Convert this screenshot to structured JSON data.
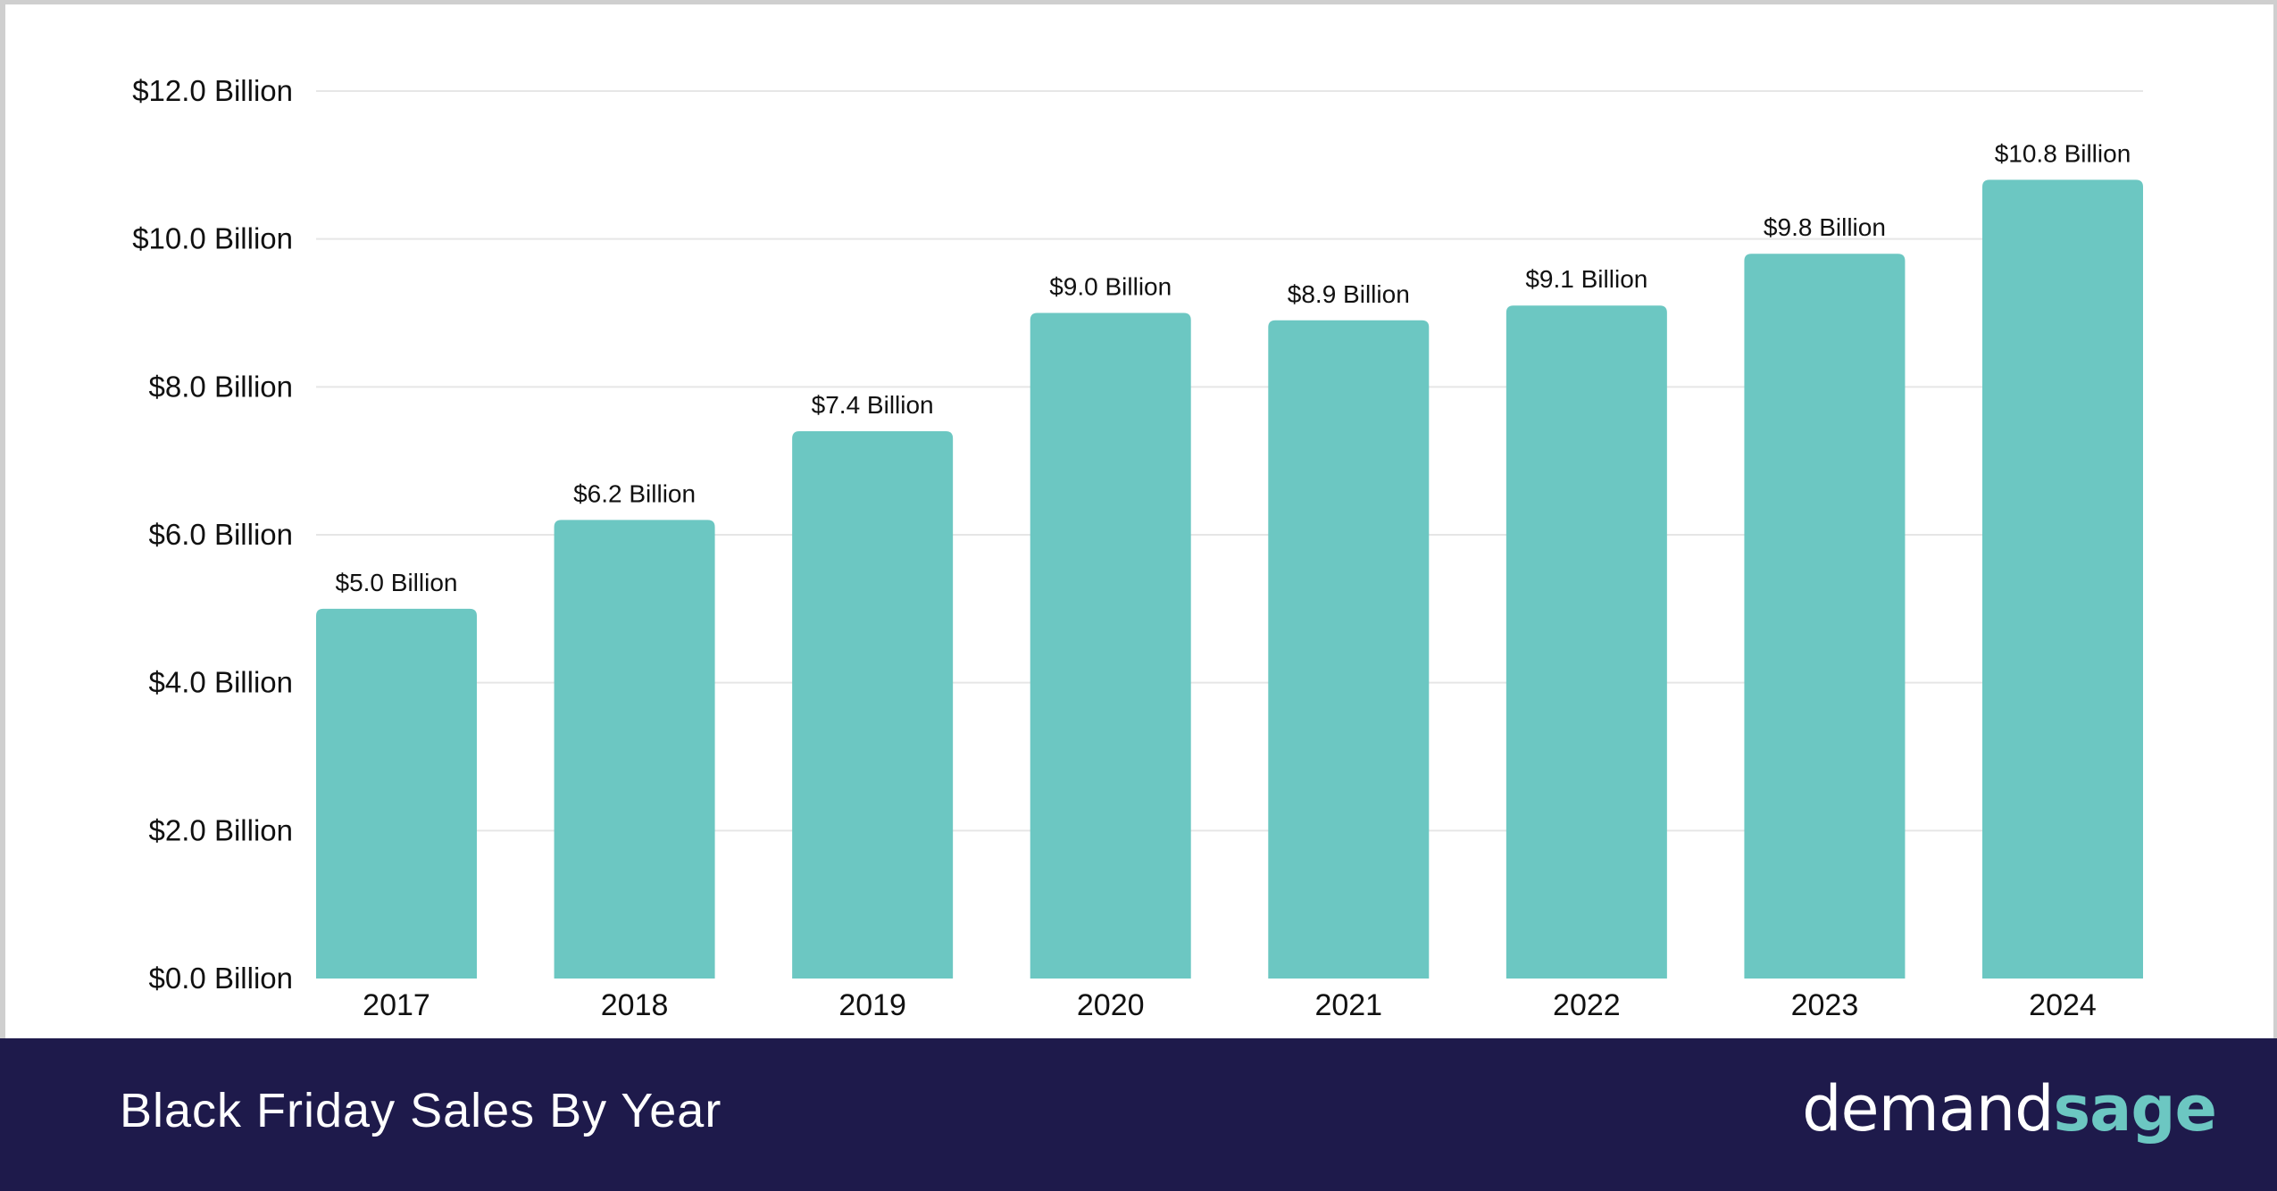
{
  "chart_data": {
    "type": "bar",
    "title": "Black Friday Sales By Year",
    "categories": [
      "2017",
      "2018",
      "2019",
      "2020",
      "2021",
      "2022",
      "2023",
      "2024"
    ],
    "values": [
      5.0,
      6.2,
      7.4,
      9.0,
      8.9,
      9.1,
      9.8,
      10.8
    ],
    "data_labels": [
      "$5.0 Billion",
      "$6.2 Billion",
      "$7.4 Billion",
      "$9.0 Billion",
      "$8.9 Billion",
      "$9.1 Billion",
      "$9.8 Billion",
      "$10.8 Billion"
    ],
    "yticks": [
      0,
      2,
      4,
      6,
      8,
      10,
      12
    ],
    "ytick_labels": [
      "$0.0 Billion",
      "$2.0 Billion",
      "$4.0 Billion",
      "$6.0 Billion",
      "$8.0 Billion",
      "$10.0 Billion",
      "$12.0 Billion"
    ],
    "ylim": [
      0,
      12
    ],
    "xlabel": "",
    "ylabel": "",
    "grid": true,
    "colors": {
      "bar": "#6cc7c2",
      "grid": "#e6e6e6",
      "footer": "#1e1a4b"
    }
  },
  "footer": {
    "title": "Black Friday Sales By Year",
    "logo_part1": "demand",
    "logo_part2": "sage"
  }
}
